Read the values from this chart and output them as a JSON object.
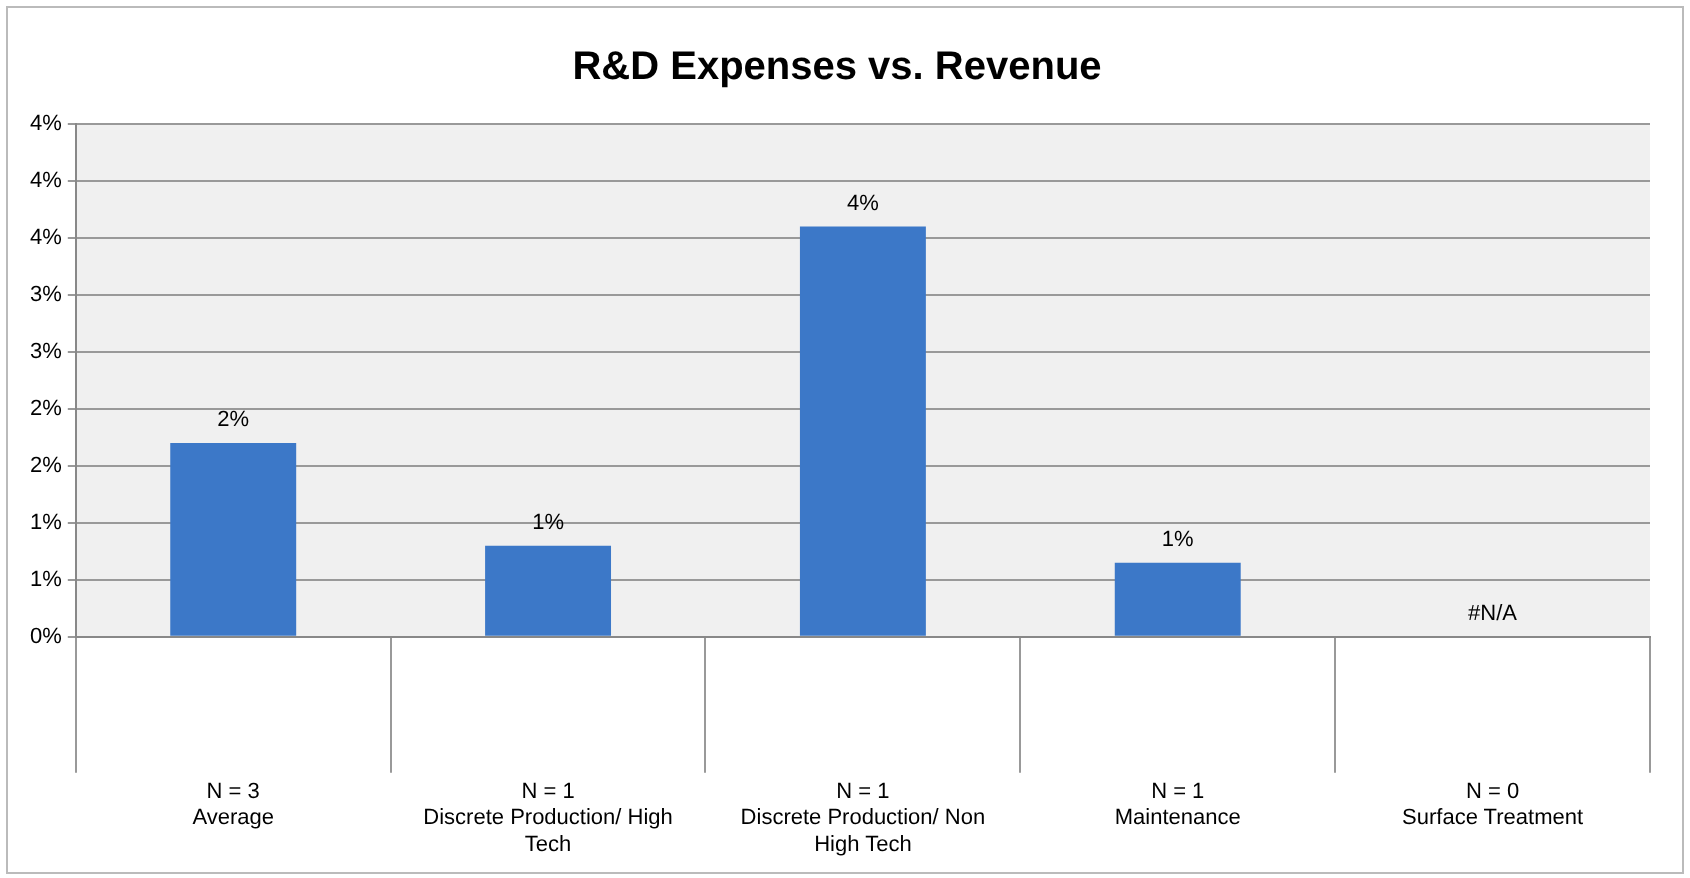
{
  "chart_data": {
    "type": "bar",
    "title": "R&D Expenses vs. Revenue",
    "categories": [
      "N = 3\nAverage",
      "N = 1\nDiscrete Production/ High Tech",
      "N = 1\nDiscrete Production/ Non High Tech",
      "N = 1\nMaintenance",
      "N = 0\nSurface Treatment"
    ],
    "values": [
      1.7,
      0.8,
      3.6,
      0.65,
      null
    ],
    "value_labels": [
      "2%",
      "1%",
      "4%",
      "1%",
      "#N/A"
    ],
    "color": "#3c78c8",
    "ylim": [
      0,
      4.5
    ],
    "yticks": [
      {
        "value": 0,
        "label": "0%"
      },
      {
        "value": 0.5,
        "label": "1%"
      },
      {
        "value": 1,
        "label": "1%"
      },
      {
        "value": 1.5,
        "label": "2%"
      },
      {
        "value": 2,
        "label": "2%"
      },
      {
        "value": 2.5,
        "label": "3%"
      },
      {
        "value": 3,
        "label": "3%"
      },
      {
        "value": 3.5,
        "label": "4%"
      },
      {
        "value": 4,
        "label": "4%"
      },
      {
        "value": 4.5,
        "label": "4%"
      }
    ],
    "grid": "y",
    "legend": false
  }
}
